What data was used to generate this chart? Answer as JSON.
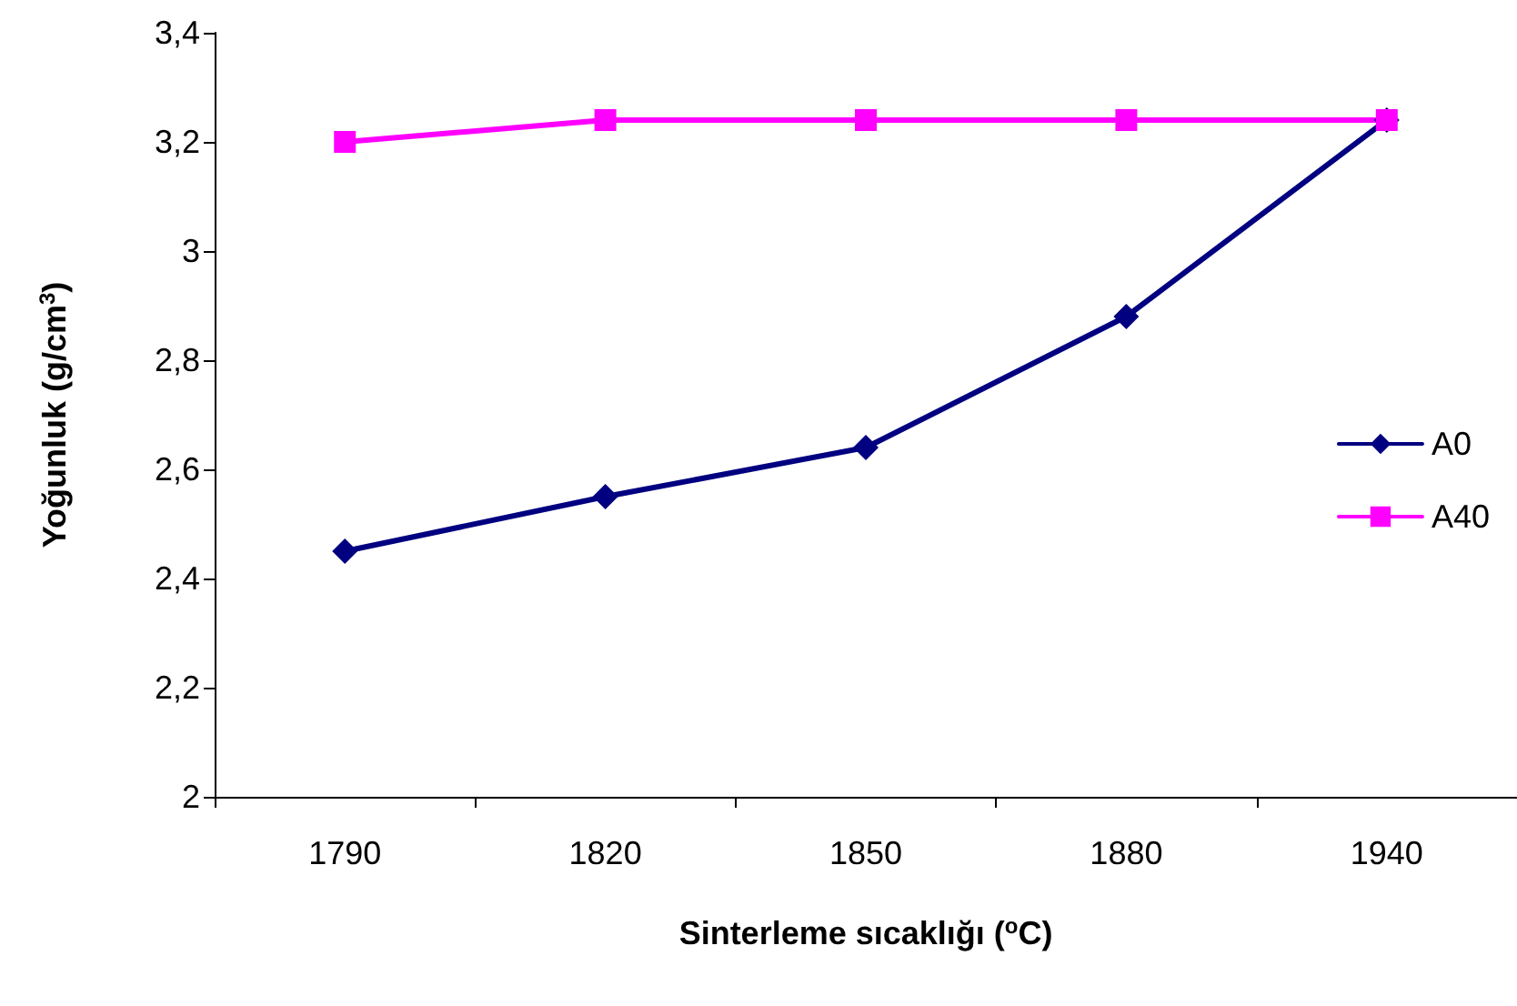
{
  "chart_data": {
    "type": "line",
    "xlabel": "Sinterleme sıcaklığı ($^{o}$C)",
    "ylabel": "Yoğunluk (g/cm$^{3}$)",
    "categories": [
      "1790",
      "1820",
      "1850",
      "1880",
      "1940"
    ],
    "series": [
      {
        "name": "A0",
        "color": "#000080",
        "marker": "diamond",
        "values": [
          2.45,
          2.55,
          2.64,
          2.88,
          3.24
        ]
      },
      {
        "name": "A40",
        "color": "#ff00ff",
        "marker": "square",
        "values": [
          3.2,
          3.24,
          3.24,
          3.24,
          3.24
        ]
      }
    ],
    "ylim": [
      2,
      3.4
    ],
    "yticks": [
      2,
      {
        "value": 2.2,
        "label": "2,2"
      },
      {
        "value": 2.4,
        "label": "2,4"
      },
      {
        "value": 2.6,
        "label": "2,6"
      },
      {
        "value": 2.8,
        "label": "2,8"
      },
      3,
      {
        "value": 3.2,
        "label": "3,2"
      },
      {
        "value": 3.4,
        "label": "3,4"
      }
    ],
    "legend": "right",
    "grid": false,
    "line_style": "solid"
  }
}
